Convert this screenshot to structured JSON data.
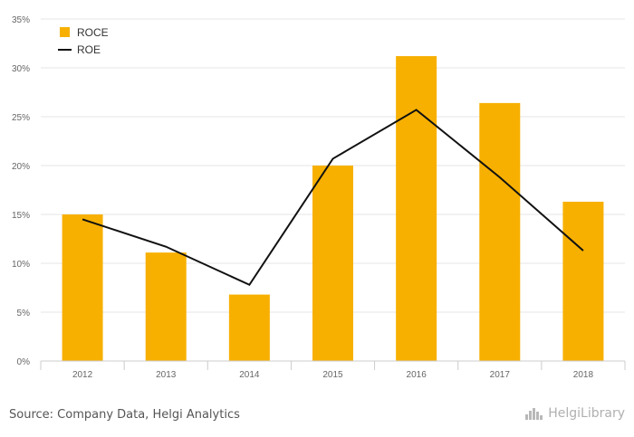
{
  "chart_data": {
    "type": "bar",
    "categories": [
      "2012",
      "2013",
      "2014",
      "2015",
      "2016",
      "2017",
      "2018"
    ],
    "series": [
      {
        "name": "ROCE",
        "kind": "bar",
        "color": "#f7b000",
        "values": [
          15.0,
          11.1,
          6.8,
          20.0,
          31.2,
          26.4,
          16.3
        ]
      },
      {
        "name": "ROE",
        "kind": "line",
        "color": "#111111",
        "values": [
          14.5,
          11.7,
          7.8,
          20.7,
          25.7,
          18.8,
          11.3
        ]
      }
    ],
    "ylim": [
      0,
      35
    ],
    "yticks": [
      "0%",
      "5%",
      "10%",
      "15%",
      "20%",
      "25%",
      "30%",
      "35%"
    ],
    "grid": true,
    "legend_position": "top-left"
  },
  "footer": {
    "source": "Source: Company Data, Helgi Analytics",
    "brand": "HelgiLibrary",
    "brand_icon": "building-icon"
  }
}
